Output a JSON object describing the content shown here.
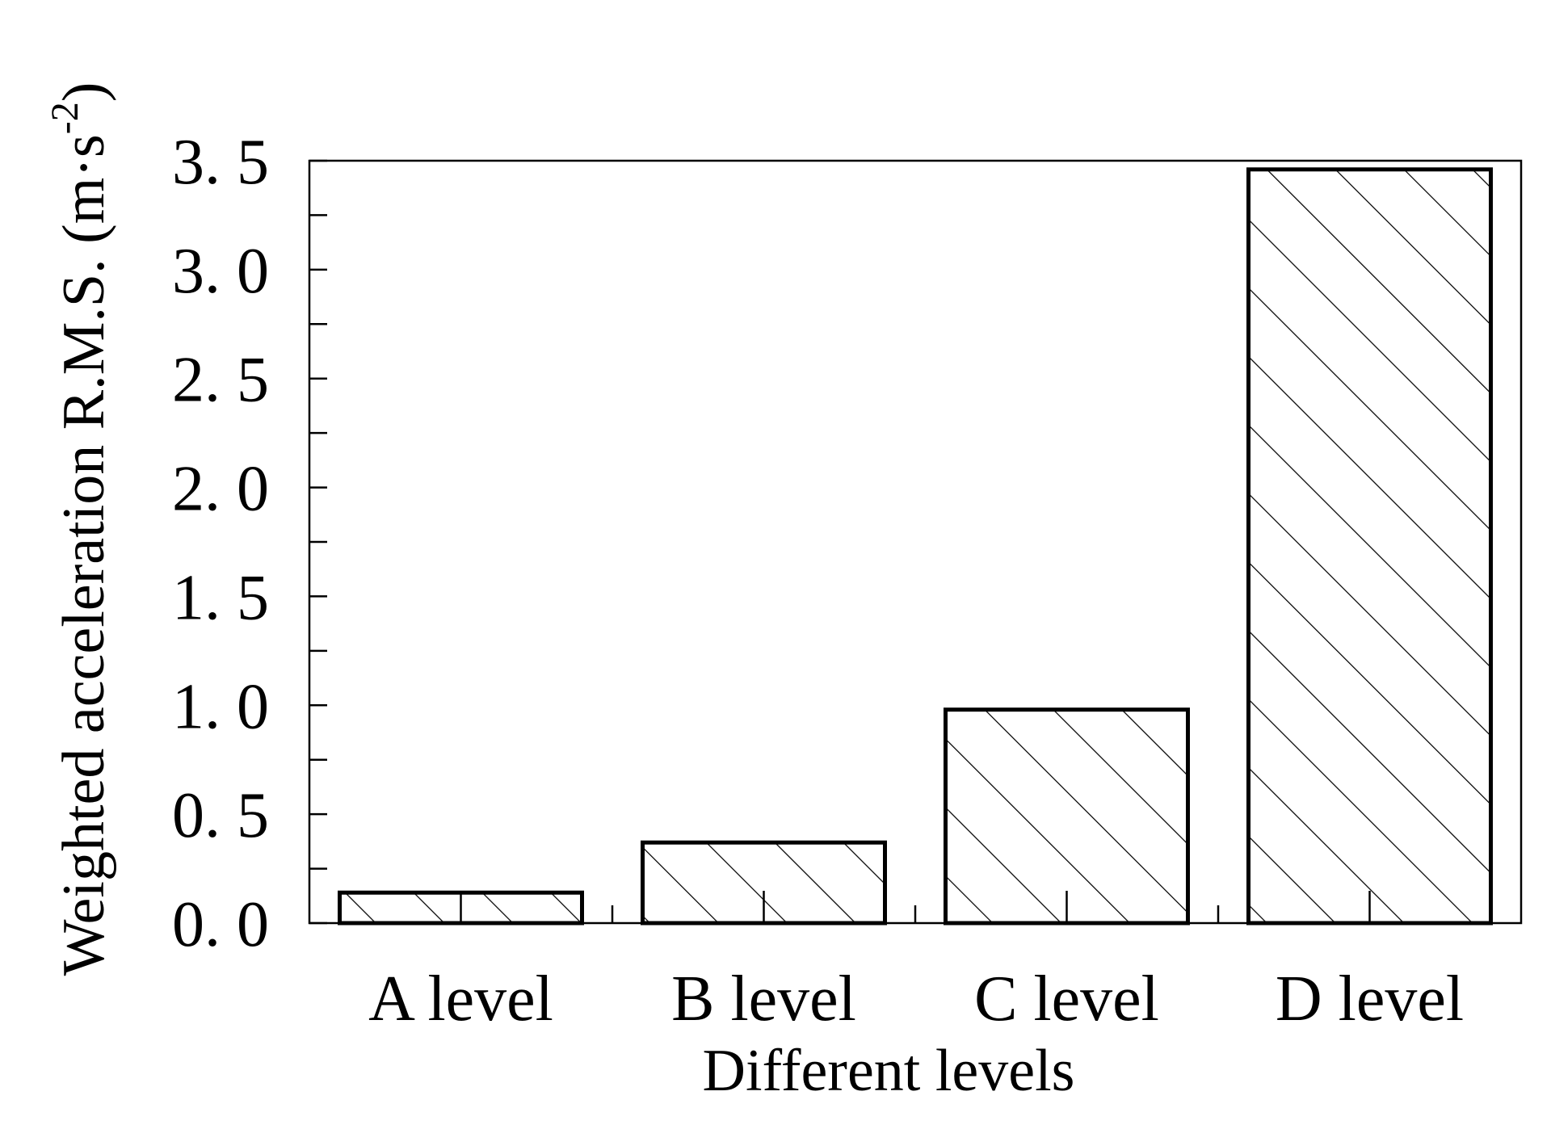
{
  "chart_data": {
    "type": "bar",
    "title": "",
    "xlabel": "Different levels",
    "ylabel_main": "Weighted acceleration R.M.S. (m·s",
    "ylabel_sup": "-2",
    "ylabel_close": ")",
    "categories": [
      "A level",
      "B level",
      "C level",
      "D level"
    ],
    "values": [
      0.14,
      0.37,
      0.98,
      3.46
    ],
    "ylim": [
      0,
      3.5
    ],
    "yticks": [
      0.0,
      0.5,
      1.0,
      1.5,
      2.0,
      2.5,
      3.0,
      3.5
    ],
    "ytick_labels": [
      "0. 0",
      "0. 5",
      "1. 0",
      "1. 5",
      "2. 0",
      "2. 5",
      "3. 0",
      "3. 5"
    ],
    "fill_pattern": "diagonal hatch",
    "bar_color": "#000000",
    "background": "#ffffff",
    "grid": false,
    "legend": "none"
  }
}
